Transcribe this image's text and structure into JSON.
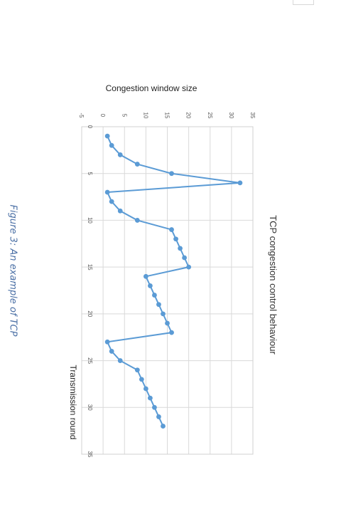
{
  "page": {
    "caption": "Figure 3: An example of TCP"
  },
  "chart_data": {
    "type": "line",
    "title": "TCP congestion control behaviour",
    "xlabel": "Transmission round",
    "ylabel": "Congestion window size",
    "xlim": [
      0,
      35
    ],
    "ylim": [
      -5,
      35
    ],
    "x_ticks": [
      0,
      5,
      10,
      15,
      20,
      25,
      30,
      35
    ],
    "y_ticks": [
      -5,
      0,
      5,
      10,
      15,
      20,
      25,
      30,
      35
    ],
    "grid": true,
    "orientation": "rotated 90° clockwise",
    "color": "#5b9bd5",
    "series": [
      {
        "x": [
          1,
          2,
          3,
          4,
          5,
          6,
          7,
          8,
          9,
          10,
          11,
          12,
          13,
          14,
          15,
          16,
          17,
          18,
          19,
          20,
          21,
          22,
          23,
          24,
          25,
          26,
          27,
          28,
          29,
          30,
          31,
          32
        ],
        "y": [
          1,
          2,
          4,
          8,
          16,
          32,
          1,
          2,
          4,
          8,
          16,
          17,
          18,
          19,
          20,
          10,
          11,
          12,
          13,
          14,
          15,
          16,
          1,
          2,
          4,
          8,
          9,
          10,
          11,
          12,
          13,
          14
        ]
      }
    ]
  }
}
